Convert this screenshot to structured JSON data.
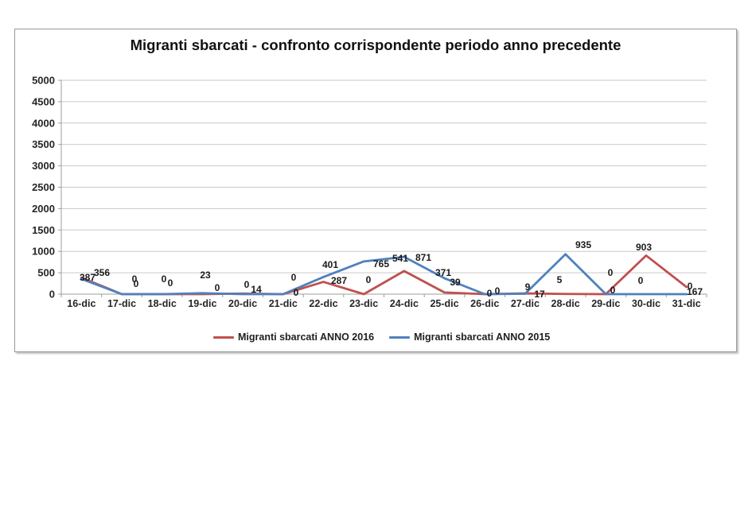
{
  "chart_data": {
    "type": "line",
    "title": "Migranti sbarcati - confronto corrispondente periodo anno precedente",
    "categories": [
      "16-dic",
      "17-dic",
      "18-dic",
      "19-dic",
      "20-dic",
      "21-dic",
      "22-dic",
      "23-dic",
      "24-dic",
      "25-dic",
      "26-dic",
      "27-dic",
      "28-dic",
      "29-dic",
      "30-dic",
      "31-dic"
    ],
    "series": [
      {
        "name": "Migranti sbarcati ANNO 2016",
        "color": "#C0504D",
        "values": [
          387,
          0,
          0,
          0,
          14,
          0,
          287,
          0,
          541,
          39,
          0,
          17,
          5,
          0,
          903,
          167
        ]
      },
      {
        "name": "Migranti sbarcati ANNO 2015",
        "color": "#4F81BD",
        "values": [
          356,
          0,
          0,
          23,
          0,
          0,
          401,
          765,
          871,
          371,
          0,
          9,
          935,
          0,
          0,
          0
        ]
      }
    ],
    "xlabel": "",
    "ylabel": "",
    "ylim": [
      0,
      5000
    ],
    "yticks": [
      0,
      500,
      1000,
      1500,
      2000,
      2500,
      3000,
      3500,
      4000,
      4500,
      5000
    ],
    "grid": true,
    "data_labels": true,
    "legend_position": "bottom",
    "colors": {
      "gridline": "#c9c9c9",
      "axis": "#9e9e9e",
      "tick_label": "#262626",
      "data_label": "#1a1a1a"
    }
  }
}
